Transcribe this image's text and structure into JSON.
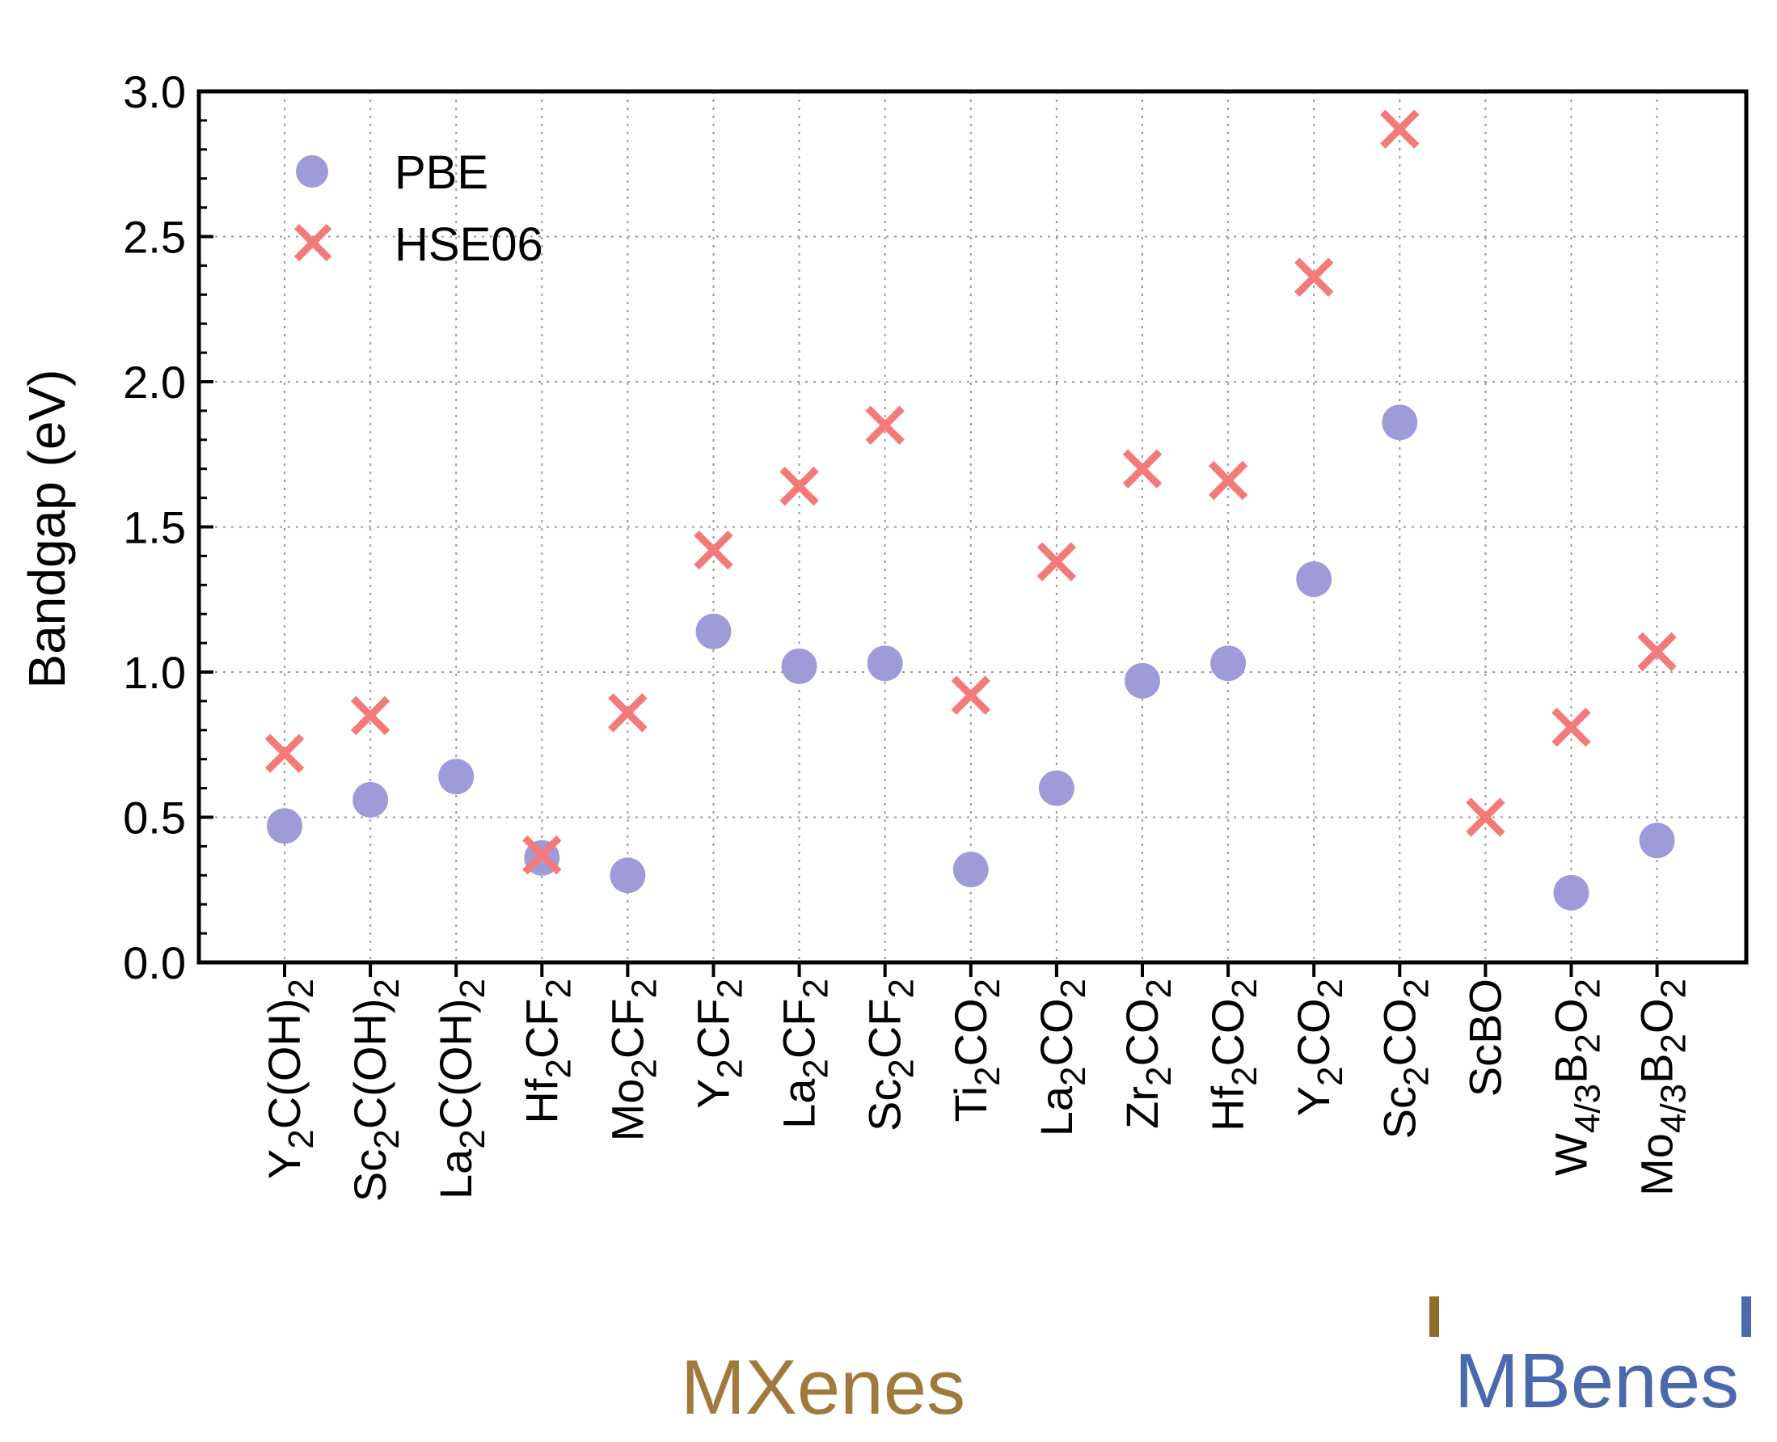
{
  "chart_data": {
    "type": "scatter",
    "ylabel": "Bandgap (eV)",
    "ylim": [
      0.0,
      3.0
    ],
    "yticks": [
      "0.0",
      "0.5",
      "1.0",
      "1.5",
      "2.0",
      "2.5",
      "3.0"
    ],
    "grid": true,
    "legend_position": "top-left",
    "categories": [
      {
        "base": "Y",
        "sub": "2",
        "rest": "C(OH)",
        "sub2": "2",
        "mid": "",
        "sub3": ""
      },
      {
        "base": "Sc",
        "sub": "2",
        "rest": "C(OH)",
        "sub2": "2",
        "mid": "",
        "sub3": ""
      },
      {
        "base": "La",
        "sub": "2",
        "rest": "C(OH)",
        "sub2": "2",
        "mid": "",
        "sub3": ""
      },
      {
        "base": "Hf",
        "sub": "2",
        "rest": "CF",
        "sub2": "2",
        "mid": "",
        "sub3": ""
      },
      {
        "base": "Mo",
        "sub": "2",
        "rest": "CF",
        "sub2": "2",
        "mid": "",
        "sub3": ""
      },
      {
        "base": "Y",
        "sub": "2",
        "rest": "CF",
        "sub2": "2",
        "mid": "",
        "sub3": ""
      },
      {
        "base": "La",
        "sub": "2",
        "rest": "CF",
        "sub2": "2",
        "mid": "",
        "sub3": ""
      },
      {
        "base": "Sc",
        "sub": "2",
        "rest": "CF",
        "sub2": "2",
        "mid": "",
        "sub3": ""
      },
      {
        "base": "Ti",
        "sub": "2",
        "rest": "CO",
        "sub2": "2",
        "mid": "",
        "sub3": ""
      },
      {
        "base": "La",
        "sub": "2",
        "rest": "CO",
        "sub2": "2",
        "mid": "",
        "sub3": ""
      },
      {
        "base": "Zr",
        "sub": "2",
        "rest": "CO",
        "sub2": "2",
        "mid": "",
        "sub3": ""
      },
      {
        "base": "Hf",
        "sub": "2",
        "rest": "CO",
        "sub2": "2",
        "mid": "",
        "sub3": ""
      },
      {
        "base": "Y",
        "sub": "2",
        "rest": "CO",
        "sub2": "2",
        "mid": "",
        "sub3": ""
      },
      {
        "base": "Sc",
        "sub": "2",
        "rest": "CO",
        "sub2": "2",
        "mid": "",
        "sub3": ""
      },
      {
        "base": "ScBO",
        "sub": "",
        "rest": "",
        "sub2": "",
        "mid": "",
        "sub3": ""
      },
      {
        "base": "W",
        "sub": "4/3",
        "rest": "B",
        "sub2": "2",
        "mid": "O",
        "sub3": "2"
      },
      {
        "base": "Mo",
        "sub": "4/3",
        "rest": "B",
        "sub2": "2",
        "mid": "O",
        "sub3": "2"
      }
    ],
    "series": [
      {
        "name": "PBE",
        "marker": "circle",
        "color": "#9e9bd8",
        "values": [
          0.47,
          0.56,
          0.64,
          0.36,
          0.3,
          1.14,
          1.02,
          1.03,
          0.32,
          0.6,
          0.97,
          1.03,
          1.32,
          1.86,
          null,
          0.24,
          0.42
        ]
      },
      {
        "name": "HSE06",
        "marker": "x",
        "color": "#f47a7a",
        "values": [
          0.72,
          0.85,
          null,
          0.37,
          0.86,
          1.42,
          1.64,
          1.85,
          0.92,
          1.38,
          1.7,
          1.66,
          2.36,
          2.87,
          0.5,
          0.81,
          1.07
        ]
      }
    ],
    "groups": [
      {
        "label": "MXenes",
        "from_index": 0,
        "to_index": 13,
        "color": "#a07a3c"
      },
      {
        "label": "MBenes",
        "from_index": 14,
        "to_index": 16,
        "color": "#4a69ad"
      }
    ]
  }
}
